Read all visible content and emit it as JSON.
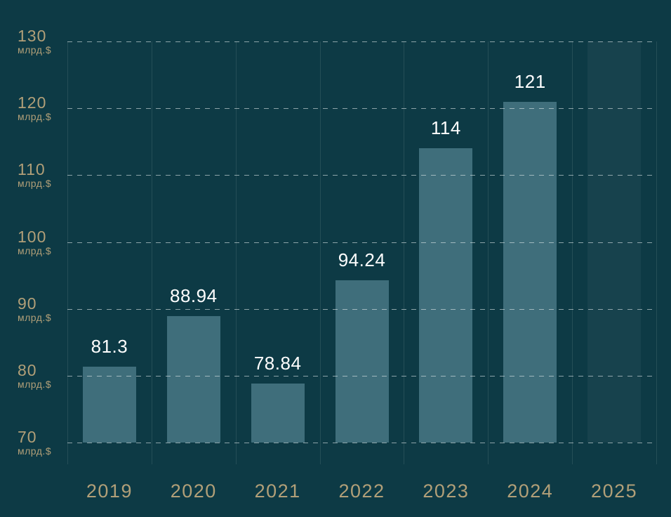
{
  "chart_data": {
    "type": "bar",
    "title": "",
    "categories": [
      "2019",
      "2020",
      "2021",
      "2022",
      "2023",
      "2024",
      "2025"
    ],
    "values": [
      81.3,
      88.94,
      78.84,
      94.24,
      114,
      121,
      null
    ],
    "value_labels": [
      "81.3",
      "88.94",
      "78.84",
      "94.24",
      "114",
      "121",
      ""
    ],
    "unit": "млрд.$",
    "yticks": [
      130,
      120,
      110,
      100,
      90,
      80,
      70
    ],
    "ylim": [
      70,
      130
    ],
    "grid": "dashed horizontal gridlines every 10 units, faint solid vertical column separators",
    "legend": "none",
    "forecast_note": "2025 bar is faded, spans full chart height, and has no value label"
  },
  "colors": {
    "background": "#0d3a45",
    "bar": "#3f6e7b",
    "bar_faded": "rgba(255,255,255,0.045)",
    "axis_text": "#b19f78",
    "value_text": "#ffffff",
    "gridline": "rgba(224,233,234,0.60)",
    "vline": "rgba(255,255,255,0.10)"
  }
}
